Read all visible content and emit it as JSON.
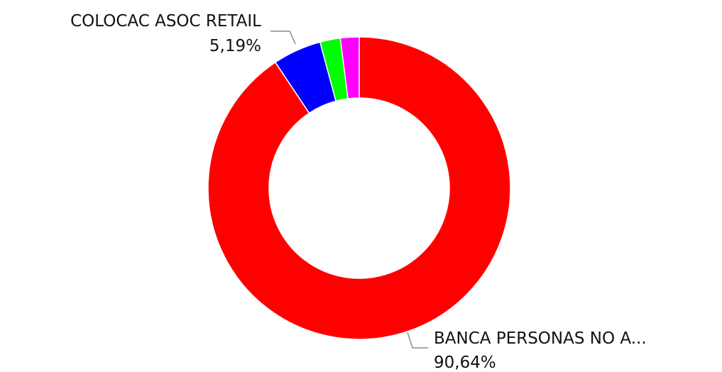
{
  "chart_data": {
    "type": "pie",
    "style": "donut",
    "title": "",
    "categories": [
      "BANCA PERSONAS NO A...",
      "COLOCAC ASOC RETAIL",
      "",
      ""
    ],
    "values": [
      90.64,
      5.19,
      2.17,
      2.0
    ],
    "colors": [
      "#ff0000",
      "#0000ff",
      "#00ff00",
      "#ff00ff"
    ],
    "data_labels": [
      {
        "name": "BANCA PERSONAS NO A...",
        "value": "90,64%"
      },
      {
        "name": "COLOCAC ASOC RETAIL",
        "value": "5,19%"
      }
    ],
    "legend": "none"
  }
}
